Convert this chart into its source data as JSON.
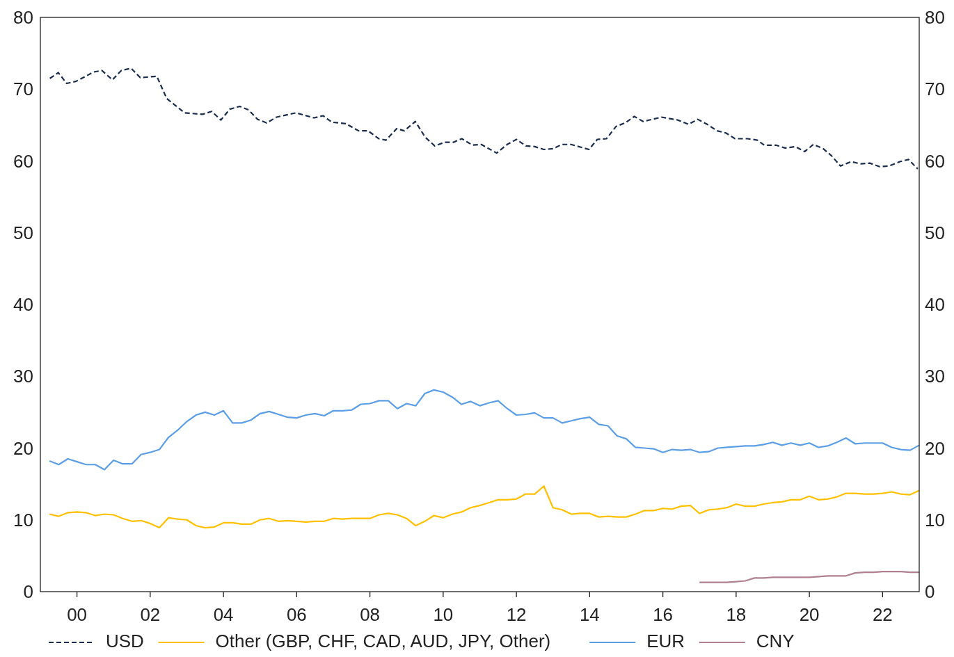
{
  "chart_data": {
    "type": "line",
    "x": [
      1999.25,
      1999.5,
      1999.75,
      2000,
      2000.25,
      2000.5,
      2000.75,
      2001,
      2001.25,
      2001.5,
      2001.75,
      2002,
      2002.25,
      2002.5,
      2002.75,
      2003,
      2003.25,
      2003.5,
      2003.75,
      2004,
      2004.25,
      2004.5,
      2004.75,
      2005,
      2005.25,
      2005.5,
      2005.75,
      2006,
      2006.25,
      2006.5,
      2006.75,
      2007,
      2007.25,
      2007.5,
      2007.75,
      2008,
      2008.25,
      2008.5,
      2008.75,
      2009,
      2009.25,
      2009.5,
      2009.75,
      2010,
      2010.25,
      2010.5,
      2010.75,
      2011,
      2011.25,
      2011.5,
      2011.75,
      2012,
      2012.25,
      2012.5,
      2012.75,
      2013,
      2013.25,
      2013.5,
      2013.75,
      2014,
      2014.25,
      2014.5,
      2014.75,
      2015,
      2015.25,
      2015.5,
      2015.75,
      2016,
      2016.25,
      2016.5,
      2016.75,
      2017,
      2017.25,
      2017.5,
      2017.75,
      2018,
      2018.25,
      2018.5,
      2018.75,
      2019,
      2019.25,
      2019.5,
      2019.75,
      2020,
      2020.25,
      2020.5,
      2020.75,
      2021,
      2021.25,
      2021.5,
      2021.75,
      2022,
      2022.25,
      2022.5,
      2022.75,
      2023
    ],
    "series": [
      {
        "name": "USD",
        "color": "#1b2d4d",
        "line_style": "dashed",
        "x": [
          1999.26,
          1999.49,
          1999.72,
          1999.98,
          2000.46,
          2000.68,
          2000.97,
          2001.21,
          2001.48,
          2001.73,
          2002.18,
          2002.45,
          2002.94,
          2003.43,
          2003.68,
          2003.93,
          2004.17,
          2004.44,
          2004.69,
          2004.93,
          2005.18,
          2005.45,
          2005.98,
          2006.47,
          2006.72,
          2006.96,
          2007.34,
          2007.69,
          2007.95,
          2008.24,
          2008.44,
          2008.73,
          2008.94,
          2009.24,
          2009.51,
          2009.77,
          2010.04,
          2010.28,
          2010.51,
          2010.8,
          2011.04,
          2011.46,
          2011.75,
          2012,
          2012.26,
          2012.5,
          2012.75,
          2013,
          2013.24,
          2013.49,
          2013.98,
          2014.21,
          2014.46,
          2014.72,
          2014.97,
          2015.22,
          2015.46,
          2015.96,
          2016.41,
          2016.7,
          2016.95,
          2017.21,
          2017.48,
          2017.72,
          2017.97,
          2018.31,
          2018.58,
          2018.77,
          2019.09,
          2019.34,
          2019.62,
          2019.87,
          2020.11,
          2020.38,
          2020.61,
          2020.85,
          2021.14,
          2021.39,
          2021.65,
          2021.92,
          2022.18,
          2022.47,
          2022.71,
          2022.96
        ],
        "values": [
          71.5,
          72.3,
          70.8,
          71.1,
          72.4,
          72.6,
          71.3,
          72.6,
          72.9,
          71.6,
          71.8,
          68.7,
          66.7,
          66.5,
          66.9,
          65.7,
          67.2,
          67.6,
          67.1,
          65.8,
          65.3,
          66.1,
          66.7,
          66,
          66.3,
          65.4,
          65.2,
          64.2,
          64.2,
          63.1,
          62.9,
          64.5,
          64.2,
          65.5,
          63.3,
          62.1,
          62.6,
          62.6,
          63.1,
          62.2,
          62.3,
          61.1,
          62.3,
          63,
          62.1,
          62,
          61.6,
          61.7,
          62.3,
          62.3,
          61.6,
          63,
          63.1,
          64.8,
          65.3,
          66.2,
          65.5,
          66.1,
          65.7,
          65.1,
          65.8,
          65.1,
          64.2,
          63.9,
          63.1,
          63.1,
          62.9,
          62.2,
          62.2,
          61.8,
          62,
          61.3,
          62.3,
          61.7,
          60.7,
          59.3,
          59.9,
          59.6,
          59.7,
          59.2,
          59.3,
          59.9,
          60.2,
          58.9
        ]
      },
      {
        "name": "Other (GBP, CHF, CAD, AUD, JPY, Other)",
        "color": "#ffc000",
        "line_style": "solid",
        "values": [
          10.8,
          10.5,
          11.0,
          11.1,
          11.0,
          10.6,
          10.8,
          10.7,
          10.2,
          9.8,
          9.9,
          9.5,
          8.9,
          10.3,
          10.1,
          10.0,
          9.2,
          8.9,
          9.0,
          9.6,
          9.6,
          9.4,
          9.4,
          10.0,
          10.2,
          9.8,
          9.9,
          9.8,
          9.7,
          9.8,
          9.8,
          10.2,
          10.1,
          10.2,
          10.2,
          10.2,
          10.7,
          10.9,
          10.7,
          10.2,
          9.2,
          9.8,
          10.6,
          10.3,
          10.8,
          11.1,
          11.7,
          12.0,
          12.4,
          12.8,
          12.8,
          12.9,
          13.6,
          13.6,
          14.7,
          11.7,
          11.4,
          10.8,
          10.9,
          10.9,
          10.4,
          10.5,
          10.4,
          10.4,
          10.8,
          11.3,
          11.3,
          11.6,
          11.5,
          11.9,
          12.0,
          10.9,
          11.4,
          11.5,
          11.7,
          12.2,
          11.9,
          11.9,
          12.2,
          12.4,
          12.5,
          12.8,
          12.8,
          13.3,
          12.8,
          12.9,
          13.2,
          13.7,
          13.7,
          13.6,
          13.6,
          13.7,
          13.9,
          13.6,
          13.5,
          14.1
        ]
      },
      {
        "name": "EUR",
        "color": "#5b9ee6",
        "line_style": "solid",
        "values": [
          18.2,
          17.7,
          18.5,
          18.1,
          17.7,
          17.7,
          17.0,
          18.3,
          17.8,
          17.8,
          19.1,
          19.4,
          19.8,
          21.5,
          22.5,
          23.7,
          24.6,
          25.0,
          24.6,
          25.2,
          23.5,
          23.5,
          23.9,
          24.8,
          25.1,
          24.7,
          24.3,
          24.2,
          24.6,
          24.8,
          24.5,
          25.2,
          25.2,
          25.3,
          26.1,
          26.2,
          26.6,
          26.6,
          25.5,
          26.2,
          25.9,
          27.6,
          28.1,
          27.8,
          27.1,
          26.1,
          26.5,
          25.9,
          26.3,
          26.6,
          25.5,
          24.6,
          24.7,
          24.9,
          24.2,
          24.2,
          23.5,
          23.8,
          24.1,
          24.3,
          23.3,
          23.1,
          21.7,
          21.3,
          20.1,
          20.0,
          19.9,
          19.4,
          19.8,
          19.7,
          19.8,
          19.4,
          19.5,
          20.0,
          20.1,
          20.2,
          20.3,
          20.3,
          20.5,
          20.8,
          20.4,
          20.7,
          20.4,
          20.7,
          20.1,
          20.3,
          20.8,
          21.4,
          20.6,
          20.7,
          20.7,
          20.7,
          20.1,
          19.8,
          19.7,
          20.4
        ]
      },
      {
        "name": "CNY",
        "color": "#b0808f",
        "line_style": "solid",
        "x": [
          2017,
          2017.25,
          2017.5,
          2017.75,
          2018,
          2018.25,
          2018.5,
          2018.75,
          2019,
          2019.25,
          2019.5,
          2019.75,
          2020,
          2020.25,
          2020.5,
          2020.75,
          2021,
          2021.25,
          2021.5,
          2021.75,
          2022,
          2022.25,
          2022.5,
          2022.75,
          2023
        ],
        "values": [
          1.3,
          1.3,
          1.3,
          1.3,
          1.4,
          1.5,
          1.9,
          1.9,
          2.0,
          2.0,
          2.0,
          2.0,
          2.0,
          2.1,
          2.2,
          2.2,
          2.2,
          2.6,
          2.7,
          2.7,
          2.8,
          2.8,
          2.8,
          2.7,
          2.7
        ]
      }
    ],
    "xlim": [
      1999,
      2023
    ],
    "xticks": [
      {
        "value": 2000,
        "label": "00"
      },
      {
        "value": 2002,
        "label": "02"
      },
      {
        "value": 2004,
        "label": "04"
      },
      {
        "value": 2006,
        "label": "06"
      },
      {
        "value": 2008,
        "label": "08"
      },
      {
        "value": 2010,
        "label": "10"
      },
      {
        "value": 2012,
        "label": "12"
      },
      {
        "value": 2014,
        "label": "14"
      },
      {
        "value": 2016,
        "label": "16"
      },
      {
        "value": 2018,
        "label": "18"
      },
      {
        "value": 2020,
        "label": "20"
      },
      {
        "value": 2022,
        "label": "22"
      }
    ],
    "ylim": [
      0,
      80
    ],
    "yticks": [
      0,
      10,
      20,
      30,
      40,
      50,
      60,
      70,
      80
    ],
    "y2lim": [
      0,
      80
    ],
    "y2ticks": [
      0,
      10,
      20,
      30,
      40,
      50,
      60,
      70,
      80
    ],
    "grid": false,
    "legend": "bottom",
    "marker": "none"
  }
}
